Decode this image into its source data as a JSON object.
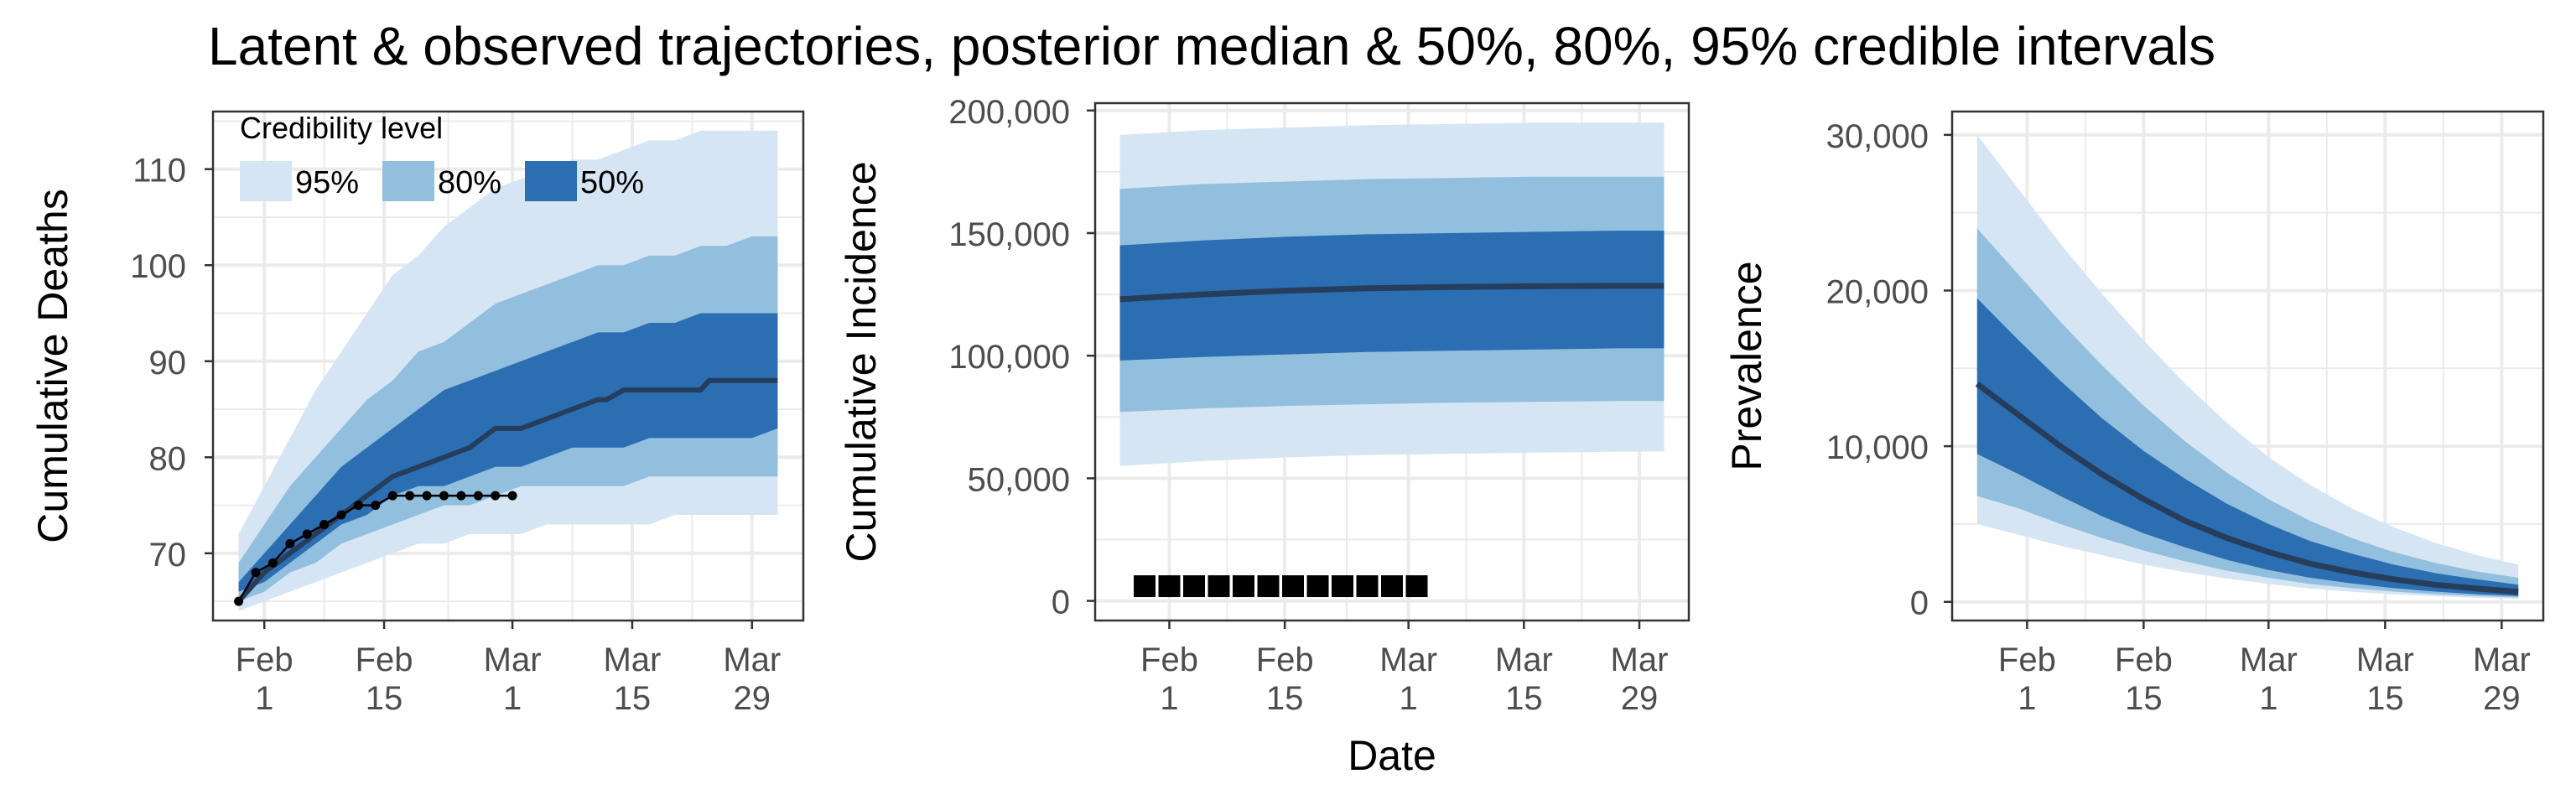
{
  "title": "Latent & observed trajectories, posterior median & 50%, 80%, 95% credible intervals",
  "colors": {
    "ci95": "#d6e5f4",
    "ci80": "#92bfde",
    "ci50": "#2c6eb2",
    "median": "#263d5c",
    "observed": "#000000",
    "grid": "#ebebeb",
    "panel_border": "#333333"
  },
  "chart_data": [
    {
      "type": "area",
      "ylabel": "Cumulative Deaths",
      "xlabel": "",
      "x_ticks": [
        "Feb\n1",
        "Feb\n15",
        "Mar\n1",
        "Mar\n15",
        "Mar\n29"
      ],
      "x_tick_dates": [
        "2020-02-01",
        "2020-02-15",
        "2020-03-01",
        "2020-03-15",
        "2020-03-29"
      ],
      "xlim": [
        "2020-01-26",
        "2020-04-04"
      ],
      "ylim": [
        63,
        116
      ],
      "y_ticks": [
        70,
        80,
        90,
        100,
        110
      ],
      "y_tick_labels": [
        "70",
        "80",
        "90",
        "100",
        "110"
      ],
      "grid": true,
      "legend": {
        "title": "Credibility level",
        "position": "top-left",
        "entries": [
          "95%",
          "80%",
          "50%"
        ]
      },
      "x": [
        "2020-01-29",
        "2020-02-01",
        "2020-02-04",
        "2020-02-07",
        "2020-02-10",
        "2020-02-13",
        "2020-02-16",
        "2020-02-19",
        "2020-02-22",
        "2020-02-25",
        "2020-02-28",
        "2020-03-02",
        "2020-03-05",
        "2020-03-08",
        "2020-03-11",
        "2020-03-14",
        "2020-03-17",
        "2020-03-20",
        "2020-03-23",
        "2020-03-26",
        "2020-03-29",
        "2020-04-01"
      ],
      "bands": [
        {
          "level": "95%",
          "lower": [
            64,
            65,
            66,
            67,
            68,
            69,
            70,
            71,
            71,
            72,
            72,
            72,
            73,
            73,
            73,
            73,
            73,
            74,
            74,
            74,
            74,
            74
          ],
          "upper": [
            72,
            77,
            82,
            87,
            91,
            95,
            99,
            101,
            104,
            106,
            108,
            109,
            110,
            111,
            111,
            112,
            113,
            113,
            114,
            114,
            114,
            114
          ]
        },
        {
          "level": "80%",
          "lower": [
            65,
            66,
            68,
            69,
            71,
            72,
            73,
            74,
            75,
            75,
            76,
            77,
            77,
            77,
            77,
            77,
            78,
            78,
            78,
            78,
            78,
            78
          ],
          "upper": [
            69,
            73,
            77,
            80,
            83,
            86,
            88,
            91,
            92,
            94,
            96,
            97,
            98,
            99,
            100,
            100,
            101,
            101,
            102,
            102,
            103,
            103
          ]
        },
        {
          "level": "50%",
          "lower": [
            66,
            67,
            69,
            71,
            73,
            74,
            76,
            77,
            77,
            78,
            79,
            79,
            80,
            81,
            81,
            81,
            82,
            82,
            82,
            82,
            82,
            83
          ],
          "upper": [
            67,
            70,
            73,
            76,
            79,
            81,
            83,
            85,
            87,
            88,
            89,
            90,
            91,
            92,
            93,
            93,
            94,
            94,
            95,
            95,
            95,
            95
          ]
        }
      ],
      "median": {
        "x": [
          "2020-01-29",
          "2020-02-01",
          "2020-02-04",
          "2020-02-07",
          "2020-02-10",
          "2020-02-13",
          "2020-02-16",
          "2020-02-19",
          "2020-02-22",
          "2020-02-25",
          "2020-02-28",
          "2020-02-29",
          "2020-03-02",
          "2020-03-05",
          "2020-03-08",
          "2020-03-11",
          "2020-03-12",
          "2020-03-14",
          "2020-03-17",
          "2020-03-20",
          "2020-03-23",
          "2020-03-24",
          "2020-03-26",
          "2020-03-29",
          "2020-04-01"
        ],
        "values": [
          65,
          68,
          70,
          72,
          74,
          76,
          78,
          79,
          80,
          81,
          83,
          83,
          83,
          84,
          85,
          86,
          86,
          87,
          87,
          87,
          87,
          88,
          88,
          88,
          88
        ]
      },
      "observed": {
        "x": [
          "2020-01-29",
          "2020-01-31",
          "2020-02-02",
          "2020-02-04",
          "2020-02-06",
          "2020-02-08",
          "2020-02-10",
          "2020-02-12",
          "2020-02-14",
          "2020-02-16",
          "2020-02-18",
          "2020-02-20",
          "2020-02-22",
          "2020-02-24",
          "2020-02-26",
          "2020-02-28",
          "2020-03-01"
        ],
        "values": [
          65,
          68,
          69,
          71,
          72,
          73,
          74,
          75,
          75,
          76,
          76,
          76,
          76,
          76,
          76,
          76,
          76
        ]
      }
    },
    {
      "type": "area",
      "ylabel": "Cumulative Incidence",
      "xlabel": "Date",
      "x_ticks": [
        "Feb\n1",
        "Feb\n15",
        "Mar\n1",
        "Mar\n15",
        "Mar\n29"
      ],
      "x_tick_dates": [
        "2020-02-01",
        "2020-02-15",
        "2020-03-01",
        "2020-03-15",
        "2020-03-29"
      ],
      "xlim": [
        "2020-01-23",
        "2020-04-04"
      ],
      "ylim": [
        -8000,
        203000
      ],
      "y_ticks": [
        0,
        50000,
        100000,
        150000,
        200000
      ],
      "y_tick_labels": [
        "0",
        "50,000",
        "100,000",
        "150,000",
        "200,000"
      ],
      "grid": true,
      "x": [
        "2020-01-26",
        "2020-02-05",
        "2020-02-15",
        "2020-02-25",
        "2020-03-06",
        "2020-03-16",
        "2020-03-26",
        "2020-04-01"
      ],
      "bands": [
        {
          "level": "95%",
          "lower": [
            55000,
            57000,
            58500,
            59500,
            60000,
            60500,
            60800,
            61000
          ],
          "upper": [
            190000,
            192000,
            193000,
            194000,
            194500,
            195000,
            195000,
            195000
          ]
        },
        {
          "level": "80%",
          "lower": [
            77000,
            78500,
            79500,
            80200,
            80800,
            81200,
            81500,
            81500
          ],
          "upper": [
            168000,
            170000,
            171000,
            172000,
            172500,
            173000,
            173000,
            173000
          ]
        },
        {
          "level": "50%",
          "lower": [
            98000,
            99500,
            100500,
            101500,
            102000,
            102500,
            103000,
            103000
          ],
          "upper": [
            145000,
            147000,
            148500,
            149500,
            150000,
            150500,
            151000,
            151000
          ]
        }
      ],
      "median": {
        "x": [
          "2020-01-26",
          "2020-02-05",
          "2020-02-15",
          "2020-02-25",
          "2020-03-06",
          "2020-03-16",
          "2020-03-26",
          "2020-04-01"
        ],
        "values": [
          123000,
          125000,
          126500,
          127500,
          128000,
          128300,
          128500,
          128500
        ]
      },
      "observed": {
        "x": [
          "2020-01-29",
          "2020-02-01",
          "2020-02-04",
          "2020-02-07",
          "2020-02-10",
          "2020-02-13",
          "2020-02-16",
          "2020-02-19",
          "2020-02-22",
          "2020-02-25",
          "2020-02-28",
          "2020-03-02"
        ],
        "values": [
          6000,
          6000,
          6000,
          6000,
          6000,
          6000,
          6000,
          6000,
          6000,
          6000,
          6000,
          6000
        ]
      }
    },
    {
      "type": "area",
      "ylabel": "Prevalence",
      "xlabel": "",
      "x_ticks": [
        "Feb\n1",
        "Feb\n15",
        "Mar\n1",
        "Mar\n15",
        "Mar\n29"
      ],
      "x_tick_dates": [
        "2020-02-01",
        "2020-02-15",
        "2020-03-01",
        "2020-03-15",
        "2020-03-29"
      ],
      "xlim": [
        "2020-01-23",
        "2020-04-03"
      ],
      "ylim": [
        -1200,
        31500
      ],
      "y_ticks": [
        0,
        10000,
        20000,
        30000
      ],
      "y_tick_labels": [
        "0",
        "10,000",
        "20,000",
        "30,000"
      ],
      "grid": true,
      "x": [
        "2020-01-26",
        "2020-01-31",
        "2020-02-05",
        "2020-02-10",
        "2020-02-15",
        "2020-02-20",
        "2020-02-25",
        "2020-03-01",
        "2020-03-06",
        "2020-03-11",
        "2020-03-16",
        "2020-03-21",
        "2020-03-26",
        "2020-03-31"
      ],
      "bands": [
        {
          "level": "95%",
          "lower": [
            5000,
            4300,
            3600,
            3000,
            2400,
            1900,
            1500,
            1150,
            850,
            650,
            480,
            360,
            260,
            200
          ],
          "upper": [
            30000,
            26500,
            23000,
            19800,
            16800,
            14000,
            11500,
            9300,
            7500,
            6000,
            4800,
            3800,
            3000,
            2400
          ]
        },
        {
          "level": "80%",
          "lower": [
            6800,
            6000,
            5000,
            4100,
            3300,
            2600,
            2000,
            1550,
            1150,
            880,
            660,
            490,
            370,
            280
          ],
          "upper": [
            24000,
            21000,
            18000,
            15200,
            12600,
            10300,
            8300,
            6600,
            5200,
            4100,
            3200,
            2500,
            1950,
            1550
          ]
        },
        {
          "level": "50%",
          "lower": [
            9500,
            8200,
            6800,
            5500,
            4400,
            3500,
            2700,
            2050,
            1550,
            1180,
            880,
            660,
            490,
            370
          ],
          "upper": [
            19500,
            16800,
            14200,
            11800,
            9700,
            7900,
            6300,
            5000,
            3900,
            3100,
            2400,
            1850,
            1450,
            1100
          ]
        }
      ],
      "median": {
        "x": [
          "2020-01-26",
          "2020-01-31",
          "2020-02-05",
          "2020-02-10",
          "2020-02-15",
          "2020-02-20",
          "2020-02-25",
          "2020-03-01",
          "2020-03-06",
          "2020-03-11",
          "2020-03-16",
          "2020-03-21",
          "2020-03-26",
          "2020-03-31"
        ],
        "values": [
          14000,
          12000,
          10000,
          8200,
          6600,
          5200,
          4100,
          3200,
          2450,
          1900,
          1450,
          1100,
          850,
          650
        ]
      }
    }
  ]
}
